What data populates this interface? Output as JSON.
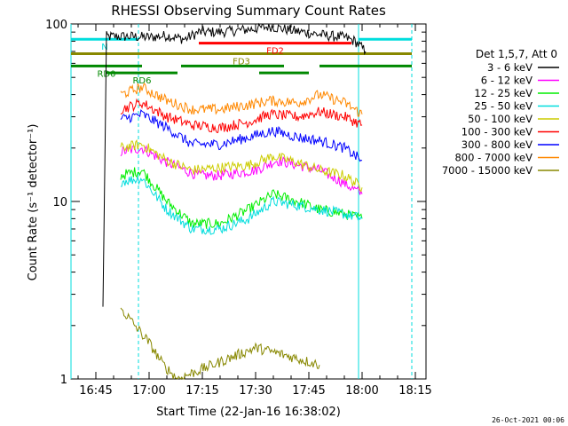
{
  "chart_data": {
    "type": "line",
    "title": "RHESSI Observing Summary Count Rates",
    "xlabel": "Start Time (22-Jan-16 16:38:02)",
    "ylabel": "Count Rate (s⁻¹ detector⁻¹)",
    "yscale": "log",
    "ylim": [
      1,
      100
    ],
    "xlim_minutes": [
      "16:38",
      "18:18"
    ],
    "x_ticks": [
      "16:45",
      "17:00",
      "17:15",
      "17:30",
      "17:45",
      "18:00",
      "18:15"
    ],
    "y_ticks": [
      "1",
      "10",
      "100"
    ],
    "legend_header": "Det 1,5,7, Att 0",
    "legend_position": "right",
    "series": [
      {
        "name": "3 - 6 keV",
        "color": "#000000",
        "points": [
          [
            "16:47",
            2.5
          ],
          [
            "16:48",
            85
          ],
          [
            "16:55",
            85
          ],
          [
            "17:00",
            84
          ],
          [
            "17:05",
            86
          ],
          [
            "17:10",
            82
          ],
          [
            "17:14",
            90
          ],
          [
            "17:20",
            90
          ],
          [
            "17:30",
            94
          ],
          [
            "17:34",
            97
          ],
          [
            "17:40",
            92
          ],
          [
            "17:45",
            89
          ],
          [
            "17:50",
            86
          ],
          [
            "17:55",
            84
          ],
          [
            "17:58",
            80
          ],
          [
            "18:01",
            70
          ]
        ]
      },
      {
        "name": "6 - 12 keV",
        "color": "#ff00ff",
        "points": [
          [
            "16:52",
            19
          ],
          [
            "16:58",
            20
          ],
          [
            "17:04",
            17
          ],
          [
            "17:10",
            15
          ],
          [
            "17:14",
            14
          ],
          [
            "17:20",
            14
          ],
          [
            "17:30",
            15
          ],
          [
            "17:36",
            17
          ],
          [
            "17:42",
            16
          ],
          [
            "17:48",
            15
          ],
          [
            "17:54",
            13
          ],
          [
            "18:00",
            11
          ]
        ]
      },
      {
        "name": "12 - 25 keV",
        "color": "#00ee00",
        "points": [
          [
            "16:52",
            14
          ],
          [
            "16:58",
            15
          ],
          [
            "17:05",
            10
          ],
          [
            "17:12",
            7.5
          ],
          [
            "17:20",
            7.5
          ],
          [
            "17:28",
            9
          ],
          [
            "17:35",
            11
          ],
          [
            "17:42",
            10
          ],
          [
            "17:48",
            9
          ],
          [
            "17:55",
            8.5
          ],
          [
            "18:00",
            8
          ]
        ]
      },
      {
        "name": "25 - 50 keV",
        "color": "#00dddd",
        "points": [
          [
            "16:52",
            13
          ],
          [
            "16:58",
            13.5
          ],
          [
            "17:05",
            9
          ],
          [
            "17:12",
            7
          ],
          [
            "17:20",
            7
          ],
          [
            "17:28",
            8
          ],
          [
            "17:35",
            10
          ],
          [
            "17:42",
            9.5
          ],
          [
            "17:48",
            9
          ],
          [
            "17:55",
            8.5
          ],
          [
            "18:00",
            8
          ]
        ]
      },
      {
        "name": "50 - 100 keV",
        "color": "#cccc00",
        "points": [
          [
            "16:52",
            20
          ],
          [
            "16:58",
            21
          ],
          [
            "17:05",
            17
          ],
          [
            "17:12",
            15
          ],
          [
            "17:20",
            15.5
          ],
          [
            "17:28",
            16
          ],
          [
            "17:35",
            18
          ],
          [
            "17:42",
            16.5
          ],
          [
            "17:48",
            15
          ],
          [
            "17:55",
            14
          ],
          [
            "18:00",
            12
          ]
        ]
      },
      {
        "name": "100 - 300 keV",
        "color": "#ff0000",
        "points": [
          [
            "16:52",
            33
          ],
          [
            "16:58",
            36
          ],
          [
            "17:05",
            30
          ],
          [
            "17:12",
            27
          ],
          [
            "17:20",
            26
          ],
          [
            "17:28",
            28
          ],
          [
            "17:34",
            31
          ],
          [
            "17:42",
            30
          ],
          [
            "17:48",
            32
          ],
          [
            "17:55",
            30
          ],
          [
            "18:00",
            27
          ]
        ]
      },
      {
        "name": "300 - 800 keV",
        "color": "#0000ff",
        "points": [
          [
            "16:52",
            29
          ],
          [
            "16:58",
            31
          ],
          [
            "17:05",
            26
          ],
          [
            "17:12",
            21
          ],
          [
            "17:20",
            21
          ],
          [
            "17:28",
            23
          ],
          [
            "17:35",
            25
          ],
          [
            "17:42",
            23
          ],
          [
            "17:48",
            22
          ],
          [
            "17:55",
            20
          ],
          [
            "18:00",
            17
          ]
        ]
      },
      {
        "name": "800 - 7000 keV",
        "color": "#ff8800",
        "points": [
          [
            "16:52",
            40
          ],
          [
            "16:58",
            44
          ],
          [
            "17:05",
            37
          ],
          [
            "17:12",
            33
          ],
          [
            "17:20",
            33
          ],
          [
            "17:28",
            35
          ],
          [
            "17:34",
            37
          ],
          [
            "17:42",
            36
          ],
          [
            "17:48",
            40
          ],
          [
            "17:55",
            36
          ],
          [
            "18:00",
            31
          ]
        ]
      },
      {
        "name": "7000 - 15000 keV",
        "color": "#888800",
        "points": [
          [
            "16:52",
            2.5
          ],
          [
            "16:56",
            2.0
          ],
          [
            "17:00",
            1.6
          ],
          [
            "17:04",
            1.2
          ],
          [
            "17:08",
            1.0
          ],
          [
            "17:30",
            1.5
          ],
          [
            "17:36",
            1.4
          ],
          [
            "17:42",
            1.3
          ],
          [
            "17:48",
            1.2
          ]
        ]
      }
    ],
    "annotations": [
      {
        "text": "N",
        "color": "#00dddd",
        "from": "16:38",
        "to": "16:57",
        "y": 82
      },
      {
        "text": "",
        "color": "#00dddd",
        "from": "17:59",
        "to": "18:14",
        "y": 82
      },
      {
        "text": "FD3",
        "color": "#888800",
        "from": "16:38",
        "to": "18:14",
        "y": 68
      },
      {
        "text": "FD2",
        "color": "#ff0000",
        "from": "17:14",
        "to": "17:57",
        "y": 78
      },
      {
        "text": "RD0",
        "color": "#008800",
        "from": "16:38",
        "to": "16:58",
        "y": 58
      },
      {
        "text": "RD6",
        "color": "#008800",
        "from": "16:48",
        "to": "17:08",
        "y": 53
      },
      {
        "text": "",
        "color": "#008800",
        "from": "17:09",
        "to": "17:38",
        "y": 58
      },
      {
        "text": "",
        "color": "#008800",
        "from": "17:31",
        "to": "17:45",
        "y": 53
      },
      {
        "text": "",
        "color": "#008800",
        "from": "17:48",
        "to": "18:14",
        "y": 58
      }
    ],
    "vertical_markers": [
      {
        "time": "16:38",
        "style": "solid",
        "color": "#00dddd"
      },
      {
        "time": "16:57",
        "style": "dashed",
        "color": "#00dddd"
      },
      {
        "time": "17:59",
        "style": "solid",
        "color": "#00dddd"
      },
      {
        "time": "18:14",
        "style": "dashed",
        "color": "#00dddd"
      }
    ],
    "footer_date": "26-Oct-2021 00:06"
  }
}
